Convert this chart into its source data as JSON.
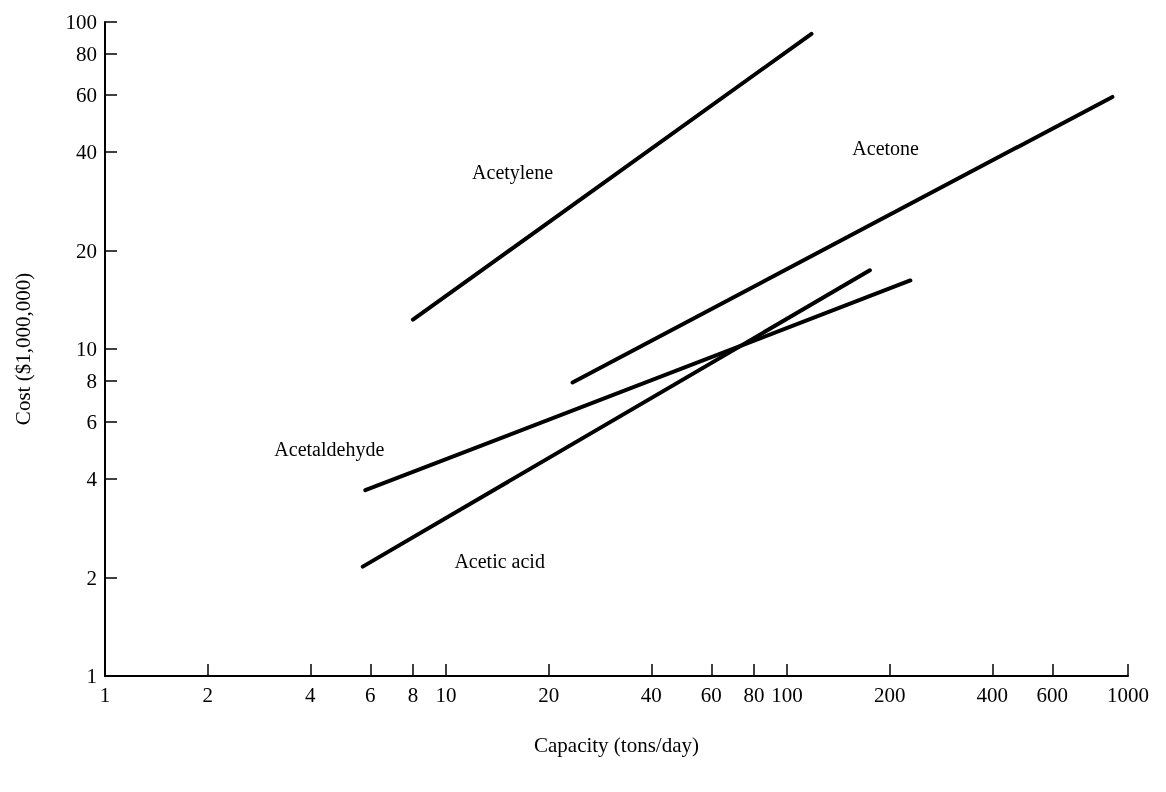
{
  "chart_data": {
    "type": "line",
    "xlabel": "Capacity (tons/day)",
    "ylabel": "Cost ($1,000,000)",
    "log": "xy",
    "xlim": [
      1,
      1000
    ],
    "xticks": [
      1,
      2,
      4,
      6,
      8,
      10,
      20,
      40,
      60,
      80,
      100,
      200,
      400,
      600,
      1000
    ],
    "ylim": [
      1,
      100
    ],
    "yticks": [
      1,
      2,
      4,
      6,
      8,
      10,
      20,
      40,
      60,
      80,
      100
    ],
    "grid": false,
    "legend": false,
    "marker": "none",
    "line_style": "solid",
    "series": [
      {
        "name": "Acetylene",
        "color": "#000000",
        "x": [
          8,
          118
        ],
        "values": [
          12.3,
          92
        ]
      },
      {
        "name": "Acetone",
        "color": "#000000",
        "x": [
          23.5,
          900
        ],
        "values": [
          7.9,
          59
        ]
      },
      {
        "name": "Acetaldehyde",
        "color": "#000000",
        "x": [
          5.8,
          230
        ],
        "values": [
          3.7,
          16.2
        ]
      },
      {
        "name": "Acetic acid",
        "color": "#000000",
        "x": [
          5.7,
          175
        ],
        "values": [
          2.16,
          17.4
        ]
      }
    ]
  }
}
